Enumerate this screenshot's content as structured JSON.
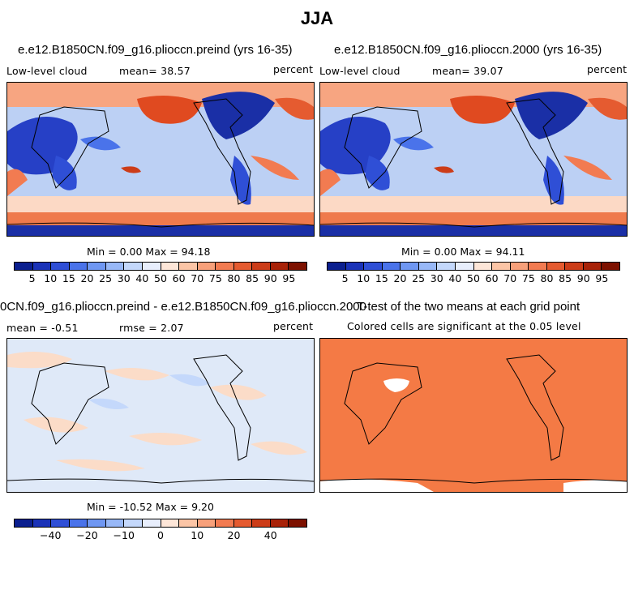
{
  "title": "JJA",
  "panels": [
    {
      "title": "e.e12.B1850CN.f09_g16.plioccn.preind (yrs 16-35)",
      "left_label": "Low-level cloud",
      "center_label": "mean=  38.57",
      "right_label": "percent",
      "minmax": "Min =   0.00 Max =  94.18"
    },
    {
      "title": "e.e12.B1850CN.f09_g16.plioccn.2000 (yrs 16-35)",
      "left_label": "Low-level cloud",
      "center_label": "mean=  39.07",
      "right_label": "percent",
      "minmax": "Min =   0.00 Max =  94.11"
    },
    {
      "title": "0CN.f09_g16.plioccn.preind - e.e12.B1850CN.f09_g16.plioccn.2000",
      "left_label": "mean = -0.51",
      "center_label": "rmse =   2.07",
      "right_label": "percent",
      "minmax": "Min = -10.52 Max =   9.20"
    },
    {
      "title": "T-test of the two means at each grid point",
      "subtitle": "Colored cells are significant at the 0.05 level"
    }
  ],
  "colorbar_abs": {
    "colors": [
      "#0b1f8f",
      "#1a32b8",
      "#2f4fd6",
      "#4a73ea",
      "#6f97f2",
      "#98b8f7",
      "#c4d8fb",
      "#e8eefc",
      "#fde6d8",
      "#fbc5a6",
      "#f7a07a",
      "#f27b51",
      "#e55b30",
      "#cc3c18",
      "#a82208",
      "#7d1100"
    ],
    "labels": [
      "5",
      "10",
      "15",
      "20",
      "25",
      "30",
      "40",
      "50",
      "60",
      "70",
      "75",
      "80",
      "85",
      "90",
      "95"
    ]
  },
  "colorbar_diff": {
    "colors": [
      "#0b1f8f",
      "#1a32b8",
      "#2f4fd6",
      "#4a73ea",
      "#6f97f2",
      "#98b8f7",
      "#c4d8fb",
      "#e8eefc",
      "#fde6d8",
      "#fbc5a6",
      "#f7a07a",
      "#f27b51",
      "#e55b30",
      "#cc3c18",
      "#a82208",
      "#7d1100"
    ],
    "labels": [
      "−40",
      "−20",
      "−10",
      "0",
      "10",
      "20",
      "40"
    ]
  },
  "colors": {
    "ttest_fill": "#f47a45",
    "diff_background": "#dfe9f8",
    "diff_positive": "#fbdcc8"
  }
}
